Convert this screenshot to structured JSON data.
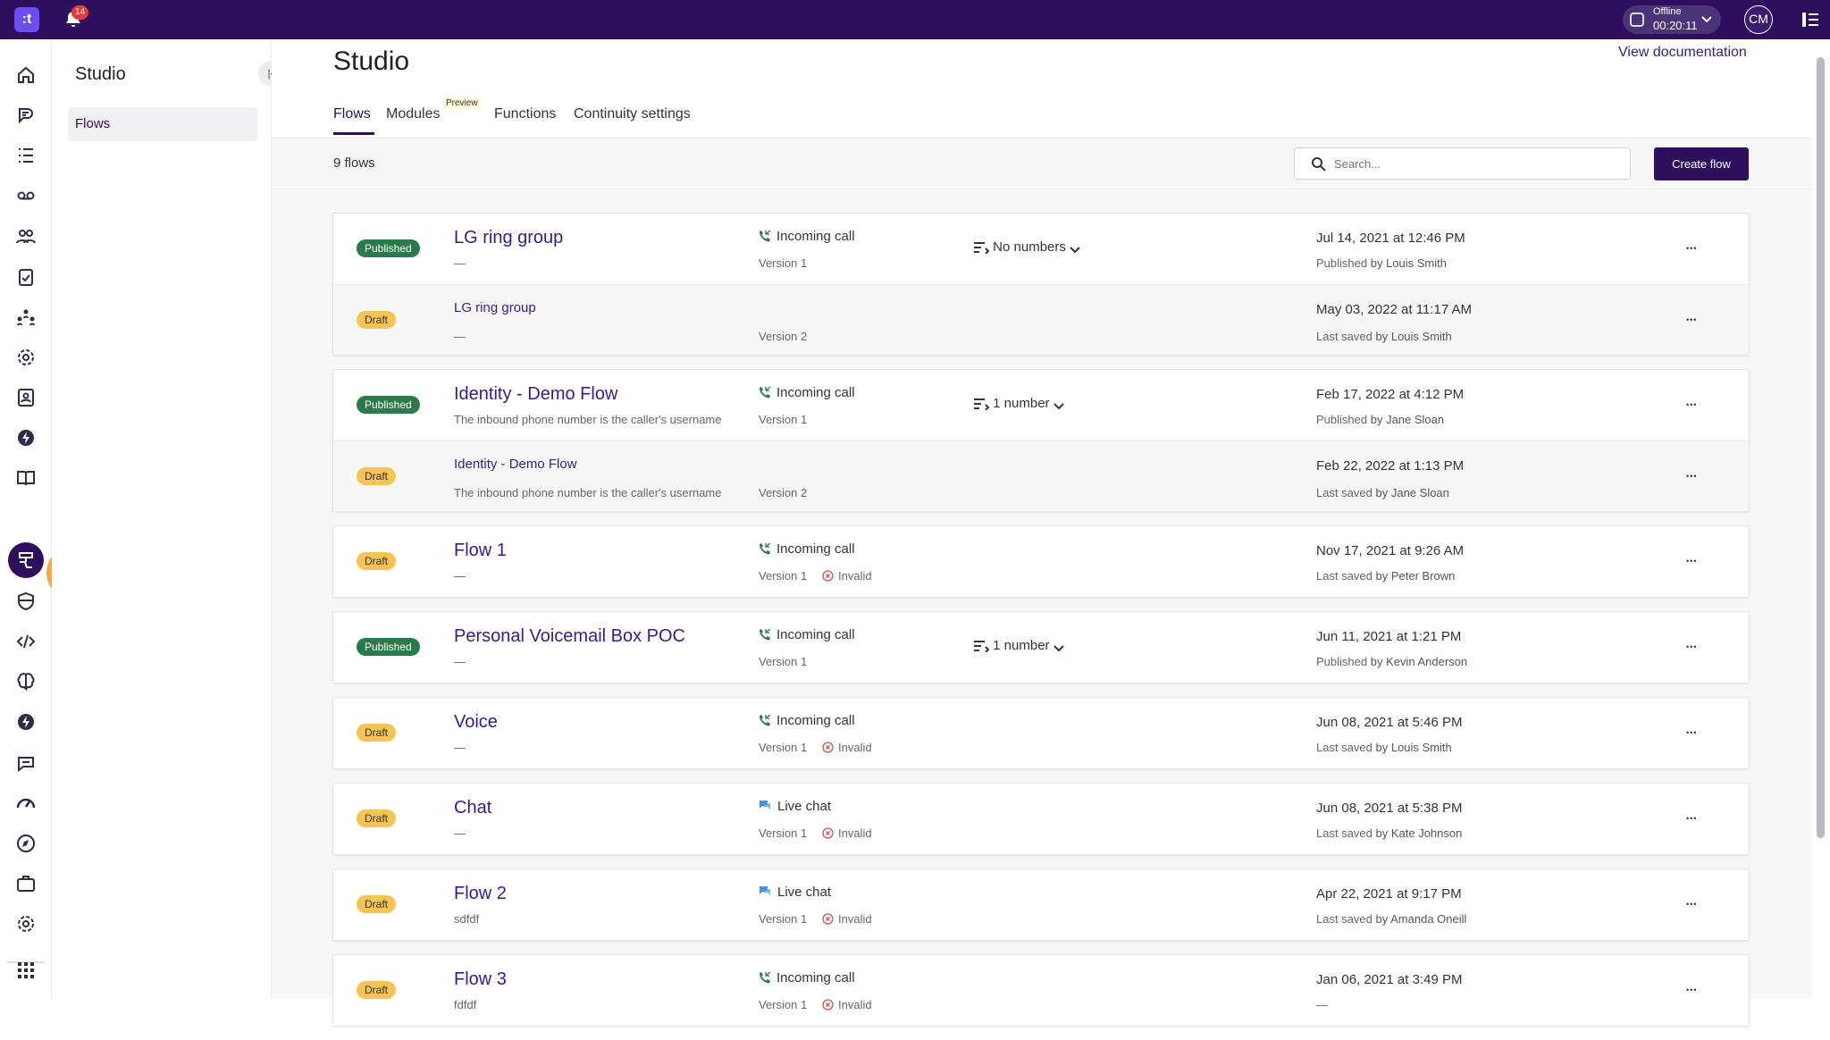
{
  "topbar": {
    "logo": ":t",
    "notification_count": "14",
    "status_label": "Offline",
    "status_time": "00:20:11",
    "avatar_initials": "CM"
  },
  "rail": {
    "icons": [
      "home-icon",
      "speech-icon",
      "list-icon",
      "voicemail-icon",
      "team-icon",
      "clipboard-icon",
      "people-network-icon",
      "gear-icon",
      "contacts-icon",
      "lightning-icon",
      "book-icon",
      "studio-flow-icon",
      "shield-icon",
      "code-icon",
      "brain-icon",
      "lightning-icon",
      "chat-bubble-icon",
      "gauge-icon",
      "compass-icon",
      "briefcase-icon",
      "settings-icon",
      "apps-grid-icon"
    ],
    "tour_step": "1"
  },
  "sidebar": {
    "title": "Studio",
    "items": [
      {
        "label": "Flows"
      }
    ]
  },
  "header": {
    "title": "Studio",
    "view_docs": "View documentation",
    "tabs": [
      {
        "label": "Flows"
      },
      {
        "label": "Modules"
      },
      {
        "label": "Functions"
      },
      {
        "label": "Continuity settings"
      }
    ],
    "preview_badge": "Preview"
  },
  "toolbar": {
    "count": "9 flows",
    "search_placeholder": "Search...",
    "create_label": "Create flow"
  },
  "flows": [
    {
      "status": "Published",
      "name": "LG ring group",
      "desc": "—",
      "channel": "Incoming call",
      "version": "Version 1",
      "invalid": "",
      "numbers": "No numbers",
      "date": "Jul 14, 2021 at 12:46 PM",
      "by_prefix": "Published",
      "by_name": "by Louis Smith",
      "draft": {
        "status": "Draft",
        "name": "LG ring group",
        "desc": "—",
        "version": "Version 2",
        "date": "May 03, 2022 at 11:17 AM",
        "by_prefix": "Last saved",
        "by_name": "by Louis Smith"
      }
    },
    {
      "status": "Published",
      "name": "Identity - Demo Flow",
      "desc": "The inbound phone number is the caller's username",
      "channel": "Incoming call",
      "version": "Version 1",
      "invalid": "",
      "numbers": "1 number",
      "date": "Feb 17, 2022 at 4:12 PM",
      "by_prefix": "Published",
      "by_name": "by Jane Sloan",
      "draft": {
        "status": "Draft",
        "name": "Identity - Demo Flow",
        "desc": "The inbound phone number is the caller's username",
        "version": "Version 2",
        "date": "Feb 22, 2022 at 1:13 PM",
        "by_prefix": "Last saved",
        "by_name": "by Jane Sloan"
      }
    },
    {
      "status": "Draft",
      "name": "Flow 1",
      "desc": "—",
      "channel": "Incoming call",
      "version": "Version 1",
      "invalid": "Invalid",
      "numbers": "",
      "date": "Nov 17, 2021 at 9:26 AM",
      "by_prefix": "Last saved",
      "by_name": "by Peter Brown"
    },
    {
      "status": "Published",
      "name": "Personal Voicemail Box POC",
      "desc": "—",
      "channel": "Incoming call",
      "version": "Version 1",
      "invalid": "",
      "numbers": "1 number",
      "date": "Jun 11, 2021 at 1:21 PM",
      "by_prefix": "Published",
      "by_name": "by Kevin Anderson"
    },
    {
      "status": "Draft",
      "name": "Voice",
      "desc": "—",
      "channel": "Incoming call",
      "version": "Version 1",
      "invalid": "Invalid",
      "numbers": "",
      "date": "Jun 08, 2021 at 5:46 PM",
      "by_prefix": "Last saved",
      "by_name": "by Louis Smith"
    },
    {
      "status": "Draft",
      "name": "Chat",
      "desc": "—",
      "channel": "Live chat",
      "version": "Version 1",
      "invalid": "Invalid",
      "numbers": "",
      "date": "Jun 08, 2021 at 5:38 PM",
      "by_prefix": "Last saved",
      "by_name": "by Kate Johnson"
    },
    {
      "status": "Draft",
      "name": "Flow 2",
      "desc": "sdfdf",
      "channel": "Live chat",
      "version": "Version 1",
      "invalid": "Invalid",
      "numbers": "",
      "date": "Apr 22, 2021 at 9:17 PM",
      "by_prefix": "Last saved",
      "by_name": "by Amanda Oneill"
    },
    {
      "status": "Draft",
      "name": "Flow 3",
      "desc": "fdfdf",
      "channel": "Incoming call",
      "version": "Version 1",
      "invalid": "Invalid",
      "numbers": "",
      "date": "Jan 06, 2021 at 3:49 PM",
      "by_prefix": "—",
      "by_name": ""
    }
  ],
  "colors": {
    "brand": "#2d0f5e",
    "link": "#3a1a8a",
    "published": "#2b7a4b",
    "draft": "#f6c453",
    "tour": "#f0ab45"
  }
}
